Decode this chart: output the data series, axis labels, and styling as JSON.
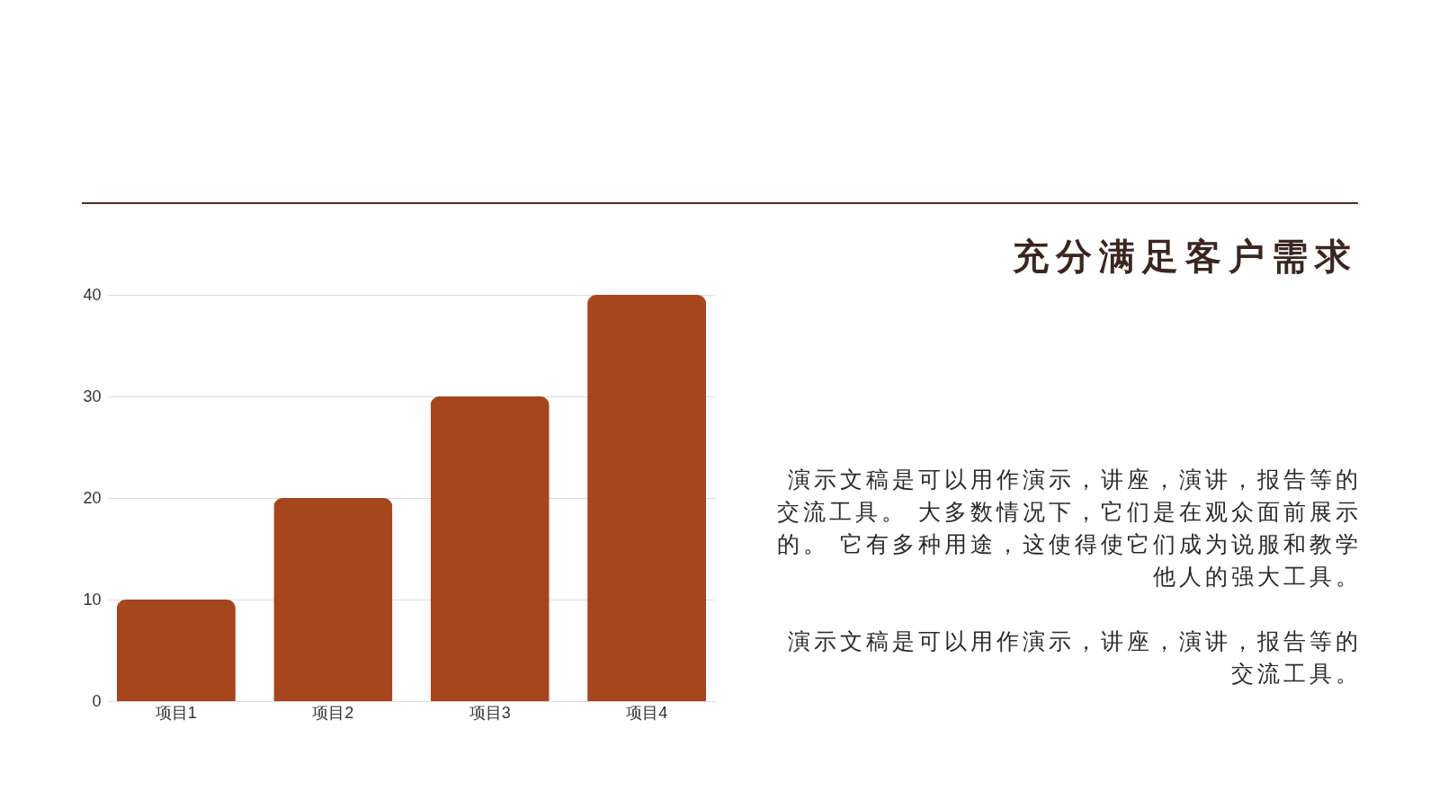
{
  "chart_data": {
    "type": "bar",
    "subtitle": "充分满足客户需求",
    "categories": [
      "项目1",
      "项目2",
      "项目3",
      "项目4"
    ],
    "values": [
      10,
      20,
      30,
      40
    ],
    "color": "#a5461e",
    "ylim": [
      0,
      40
    ],
    "yticks": [
      0,
      10,
      20,
      30,
      40
    ],
    "grid": "y",
    "annotations": [
      "演示文稿是可以用作演示，讲座，演讲，报告等的交流工具。 大多数情况下，它们是在观众面前展示的。 它有多种用途，这使得使它们成为说服和教学他人的强大工具。",
      "演示文稿是可以用作演示，讲座，演讲，报告等的交流工具。"
    ]
  }
}
